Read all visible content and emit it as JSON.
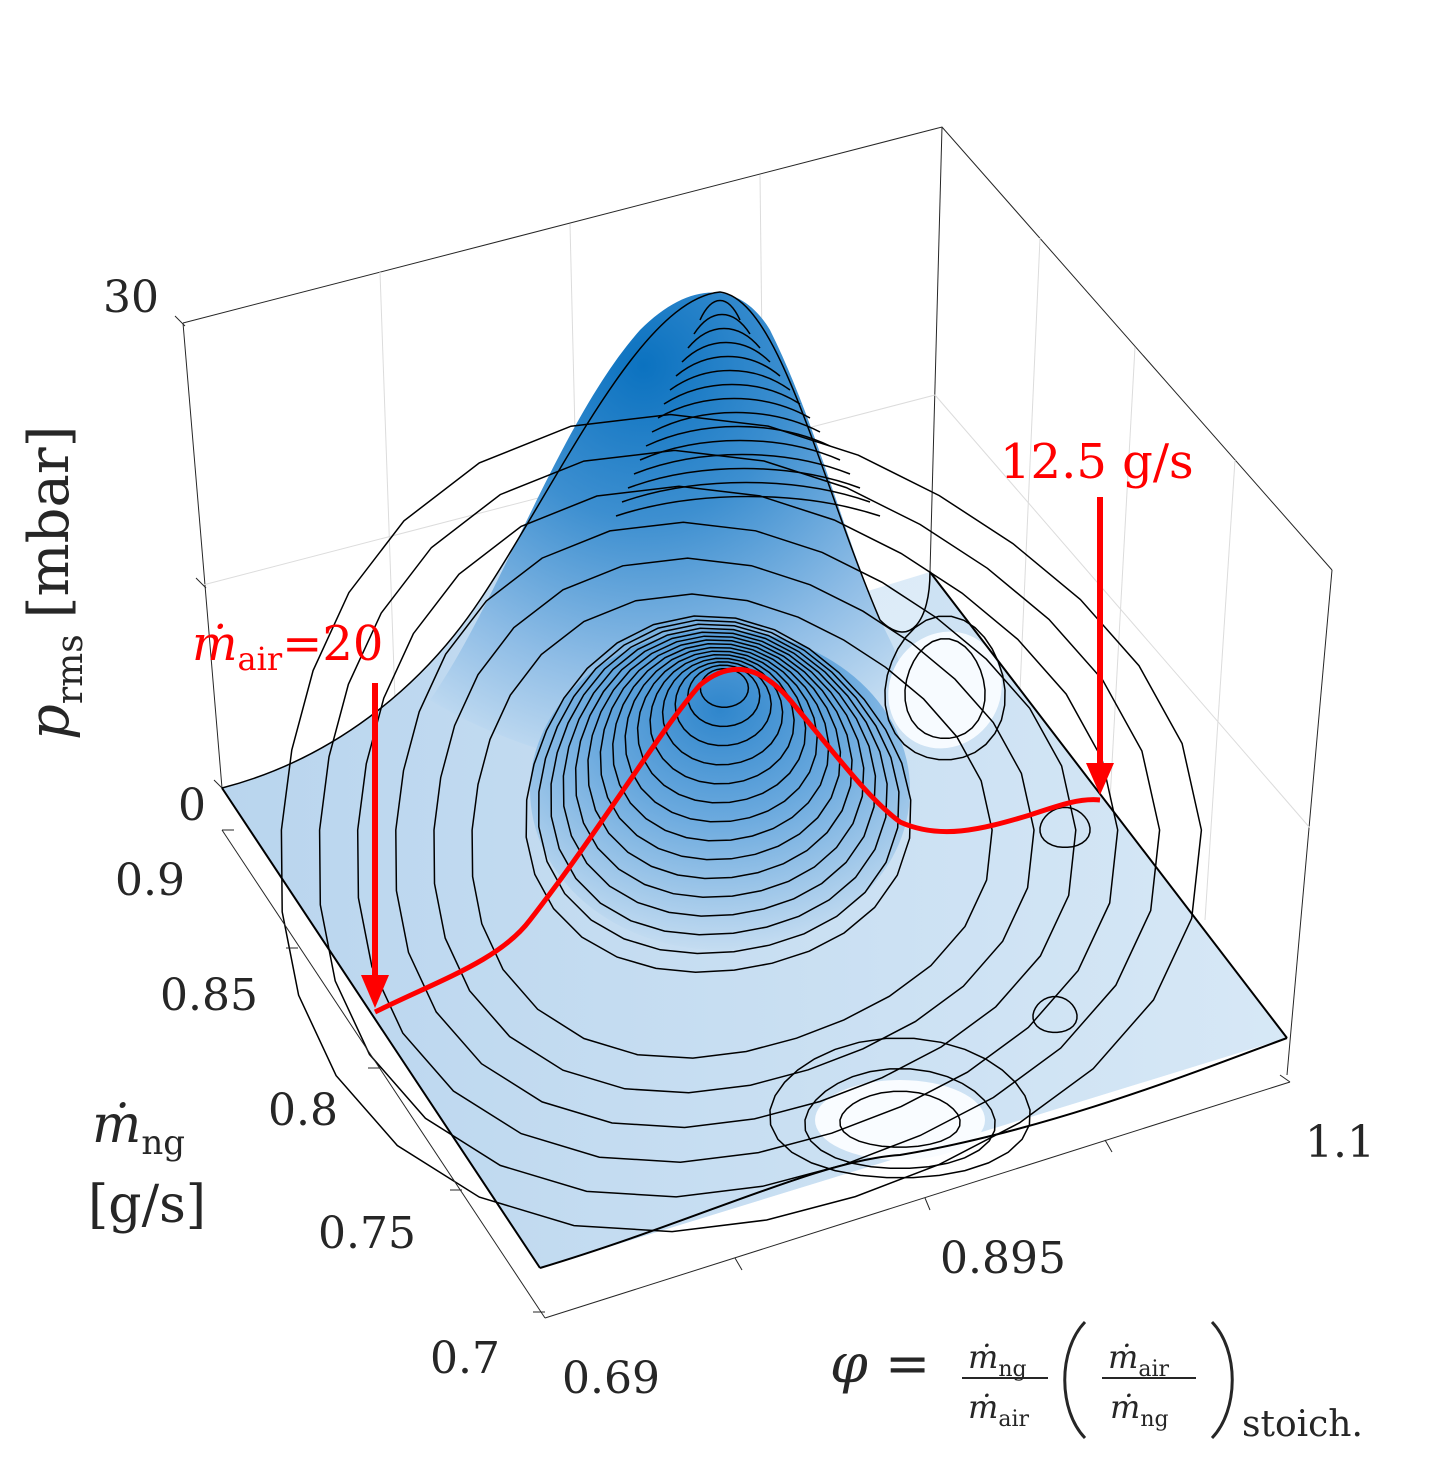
{
  "chart_data": {
    "type": "surface3d",
    "title": "",
    "x_axis": {
      "label": "φ = (ṁng / ṁair)(ṁair / ṁng)stoich.",
      "ticks": [
        "0.69",
        "0.895",
        "1.1"
      ],
      "range": [
        0.69,
        1.1
      ]
    },
    "y_axis": {
      "label_line1": "ṁng",
      "label_line2": "[g/s]",
      "ticks": [
        "0.7",
        "0.75",
        "0.8",
        "0.85",
        "0.9"
      ],
      "range": [
        0.7,
        0.9
      ]
    },
    "z_axis": {
      "label": "prms [mbar]",
      "ticks": [
        "0",
        "30"
      ],
      "range": [
        0,
        30
      ]
    },
    "contour_count": 30,
    "colormap": "white-to-blue",
    "annotations": [
      {
        "text": "ṁair = 20",
        "phi": 0.69,
        "mdot_ng": 0.84,
        "note": "arrow marks start of constant air mass flow line"
      },
      {
        "text": "12.5 g/s",
        "phi": 1.1,
        "mdot_ng": 0.88,
        "note": "arrow marks end of constant air mass flow line"
      }
    ],
    "red_line": {
      "label": "constant air mass flow path (ṁair from 20 to 12.5 g/s)",
      "phi": [
        0.69,
        0.74,
        0.79,
        0.83,
        0.86,
        0.88,
        0.9,
        0.93,
        0.96,
        1.0,
        1.05,
        1.1
      ],
      "prms": [
        0.0,
        3.0,
        7.0,
        12.0,
        17.0,
        19.0,
        17.5,
        12.0,
        6.0,
        3.0,
        2.5,
        3.0
      ]
    }
  },
  "labels": {
    "zlabel_main": "p",
    "zlabel_sub": "rms",
    "zlabel_unit": "[mbar]",
    "ylabel_main": "ṁ",
    "ylabel_sub": "ng",
    "ylabel_unit": "[g/s]",
    "xlabel_phi": "φ =",
    "frac_num": "ṁ",
    "frac_num_sub": "ng",
    "frac_den": "ṁ",
    "frac_den_sub": "air",
    "frac2_num": "ṁ",
    "frac2_num_sub": "air",
    "frac2_den": "ṁ",
    "frac2_den_sub": "ng",
    "stoich": "stoich.",
    "ann1_main": "ṁ",
    "ann1_sub": "air",
    "ann1_eq": "=20",
    "ann2": "12.5 g/s"
  },
  "colors": {
    "surface_low": "#eaf3fb",
    "surface_high": "#0b72c0",
    "contour": "#000000",
    "annotation": "#ff0000",
    "axis": "#262626",
    "grid": "#dcdcdc"
  }
}
